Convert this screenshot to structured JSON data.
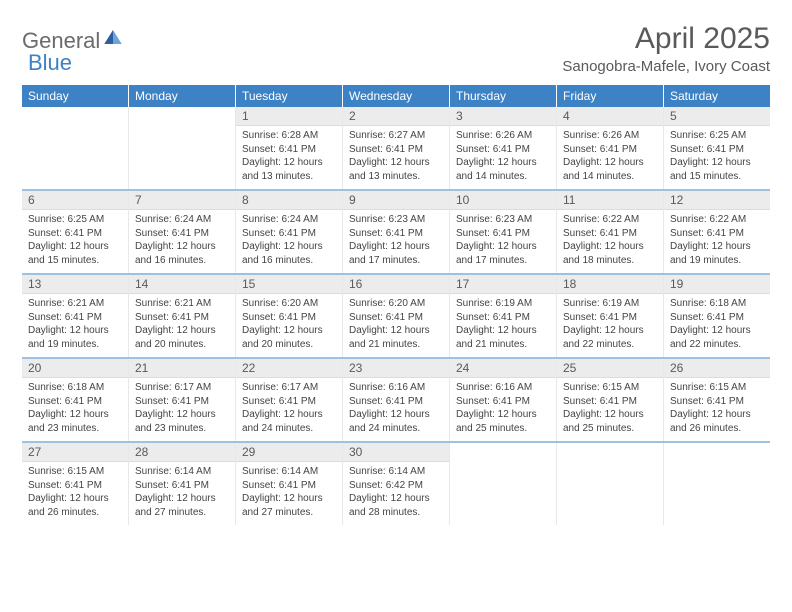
{
  "brand": {
    "general": "General",
    "blue": "Blue"
  },
  "title": "April 2025",
  "location": "Sanogobra-Mafele, Ivory Coast",
  "colors": {
    "header_bg": "#3d82c4",
    "daynum_bg": "#ececec",
    "divider": "#3d82c4",
    "text_gray": "#5a5a5a"
  },
  "day_headers": [
    "Sunday",
    "Monday",
    "Tuesday",
    "Wednesday",
    "Thursday",
    "Friday",
    "Saturday"
  ],
  "weeks": [
    [
      null,
      null,
      {
        "n": "1",
        "sr": "6:28 AM",
        "ss": "6:41 PM",
        "dl": "12 hours and 13 minutes."
      },
      {
        "n": "2",
        "sr": "6:27 AM",
        "ss": "6:41 PM",
        "dl": "12 hours and 13 minutes."
      },
      {
        "n": "3",
        "sr": "6:26 AM",
        "ss": "6:41 PM",
        "dl": "12 hours and 14 minutes."
      },
      {
        "n": "4",
        "sr": "6:26 AM",
        "ss": "6:41 PM",
        "dl": "12 hours and 14 minutes."
      },
      {
        "n": "5",
        "sr": "6:25 AM",
        "ss": "6:41 PM",
        "dl": "12 hours and 15 minutes."
      }
    ],
    [
      {
        "n": "6",
        "sr": "6:25 AM",
        "ss": "6:41 PM",
        "dl": "12 hours and 15 minutes."
      },
      {
        "n": "7",
        "sr": "6:24 AM",
        "ss": "6:41 PM",
        "dl": "12 hours and 16 minutes."
      },
      {
        "n": "8",
        "sr": "6:24 AM",
        "ss": "6:41 PM",
        "dl": "12 hours and 16 minutes."
      },
      {
        "n": "9",
        "sr": "6:23 AM",
        "ss": "6:41 PM",
        "dl": "12 hours and 17 minutes."
      },
      {
        "n": "10",
        "sr": "6:23 AM",
        "ss": "6:41 PM",
        "dl": "12 hours and 17 minutes."
      },
      {
        "n": "11",
        "sr": "6:22 AM",
        "ss": "6:41 PM",
        "dl": "12 hours and 18 minutes."
      },
      {
        "n": "12",
        "sr": "6:22 AM",
        "ss": "6:41 PM",
        "dl": "12 hours and 19 minutes."
      }
    ],
    [
      {
        "n": "13",
        "sr": "6:21 AM",
        "ss": "6:41 PM",
        "dl": "12 hours and 19 minutes."
      },
      {
        "n": "14",
        "sr": "6:21 AM",
        "ss": "6:41 PM",
        "dl": "12 hours and 20 minutes."
      },
      {
        "n": "15",
        "sr": "6:20 AM",
        "ss": "6:41 PM",
        "dl": "12 hours and 20 minutes."
      },
      {
        "n": "16",
        "sr": "6:20 AM",
        "ss": "6:41 PM",
        "dl": "12 hours and 21 minutes."
      },
      {
        "n": "17",
        "sr": "6:19 AM",
        "ss": "6:41 PM",
        "dl": "12 hours and 21 minutes."
      },
      {
        "n": "18",
        "sr": "6:19 AM",
        "ss": "6:41 PM",
        "dl": "12 hours and 22 minutes."
      },
      {
        "n": "19",
        "sr": "6:18 AM",
        "ss": "6:41 PM",
        "dl": "12 hours and 22 minutes."
      }
    ],
    [
      {
        "n": "20",
        "sr": "6:18 AM",
        "ss": "6:41 PM",
        "dl": "12 hours and 23 minutes."
      },
      {
        "n": "21",
        "sr": "6:17 AM",
        "ss": "6:41 PM",
        "dl": "12 hours and 23 minutes."
      },
      {
        "n": "22",
        "sr": "6:17 AM",
        "ss": "6:41 PM",
        "dl": "12 hours and 24 minutes."
      },
      {
        "n": "23",
        "sr": "6:16 AM",
        "ss": "6:41 PM",
        "dl": "12 hours and 24 minutes."
      },
      {
        "n": "24",
        "sr": "6:16 AM",
        "ss": "6:41 PM",
        "dl": "12 hours and 25 minutes."
      },
      {
        "n": "25",
        "sr": "6:15 AM",
        "ss": "6:41 PM",
        "dl": "12 hours and 25 minutes."
      },
      {
        "n": "26",
        "sr": "6:15 AM",
        "ss": "6:41 PM",
        "dl": "12 hours and 26 minutes."
      }
    ],
    [
      {
        "n": "27",
        "sr": "6:15 AM",
        "ss": "6:41 PM",
        "dl": "12 hours and 26 minutes."
      },
      {
        "n": "28",
        "sr": "6:14 AM",
        "ss": "6:41 PM",
        "dl": "12 hours and 27 minutes."
      },
      {
        "n": "29",
        "sr": "6:14 AM",
        "ss": "6:41 PM",
        "dl": "12 hours and 27 minutes."
      },
      {
        "n": "30",
        "sr": "6:14 AM",
        "ss": "6:42 PM",
        "dl": "12 hours and 28 minutes."
      },
      null,
      null,
      null
    ]
  ],
  "labels": {
    "sunrise": "Sunrise: ",
    "sunset": "Sunset: ",
    "daylight": "Daylight: "
  }
}
